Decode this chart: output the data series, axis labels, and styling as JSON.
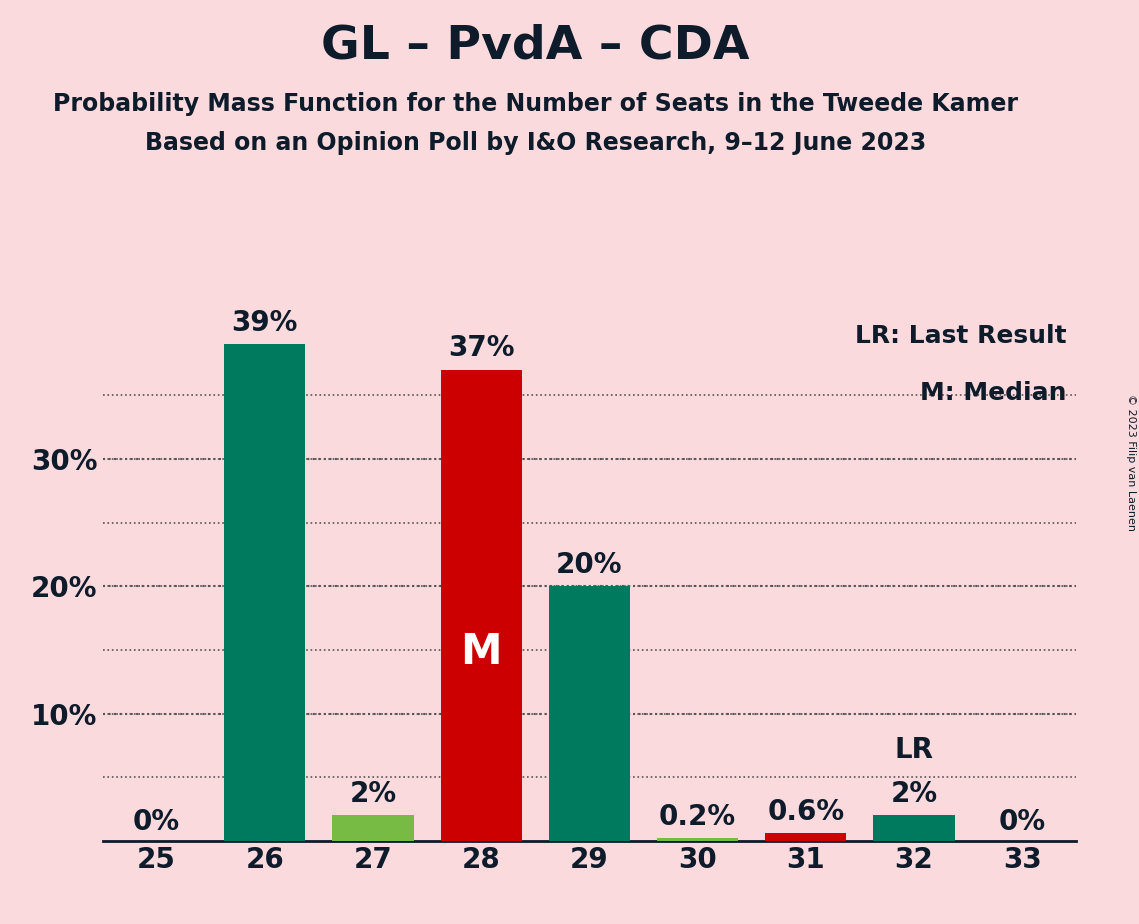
{
  "title": "GL – PvdA – CDA",
  "subtitle1": "Probability Mass Function for the Number of Seats in the Tweede Kamer",
  "subtitle2": "Based on an Opinion Poll by I&O Research, 9–12 June 2023",
  "copyright": "© 2023 Filip van Laenen",
  "legend_lr": "LR: Last Result",
  "legend_m": "M: Median",
  "seats": [
    25,
    26,
    27,
    28,
    29,
    30,
    31,
    32,
    33
  ],
  "values": [
    0.0,
    39.0,
    2.0,
    37.0,
    20.0,
    0.2,
    0.6,
    2.0,
    0.0
  ],
  "bar_colors": [
    "#007A5E",
    "#007A5E",
    "#77BB44",
    "#CC0000",
    "#007A5E",
    "#77BB44",
    "#CC0000",
    "#007A5E",
    "#007A5E"
  ],
  "bar_labels": [
    "0%",
    "39%",
    "2%",
    "37%",
    "20%",
    "0.2%",
    "0.6%",
    "2%",
    "0%"
  ],
  "median_seat": 28,
  "lr_seat": 32,
  "background_color": "#FADADD",
  "title_color": "#0D1B2A",
  "bar_label_color": "#0D1B2A",
  "median_label_color": "#FFFFFF",
  "ylim": [
    0,
    41
  ],
  "yticks_grid": [
    5,
    10,
    15,
    20,
    25,
    30,
    35
  ],
  "yticks_label": [
    10,
    20,
    30
  ],
  "title_fontsize": 34,
  "subtitle_fontsize": 17,
  "bar_label_fontsize": 20,
  "axis_label_fontsize": 20,
  "legend_fontsize": 18
}
